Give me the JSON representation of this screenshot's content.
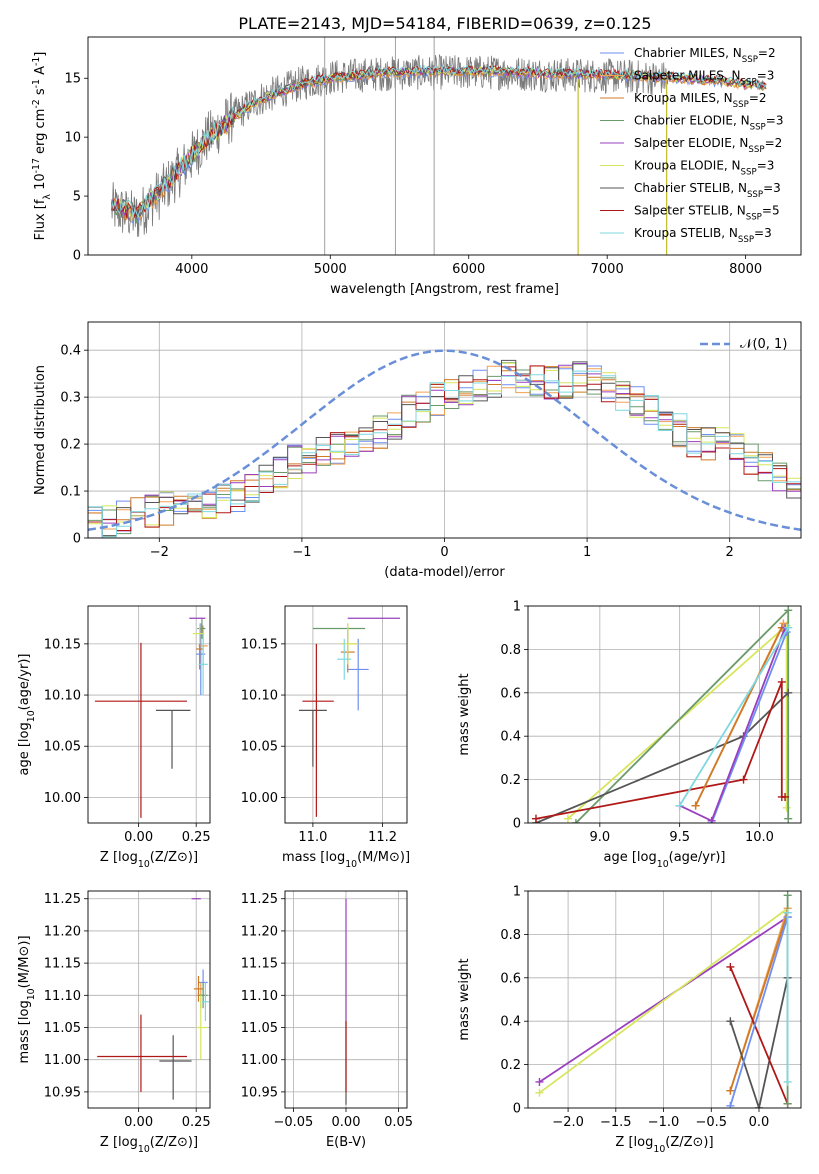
{
  "figure_title": "PLATE=2143, MJD=54184, FIBERID=0639, z=0.125",
  "model_colors": {
    "Chabrier MILES": "#6f8ff2",
    "Salpeter MILES": "#f0a050",
    "Kroupa MILES": "#d07a28",
    "Chabrier ELODIE": "#6a9a6a",
    "Salpeter ELODIE": "#9a3fbf",
    "Kroupa ELODIE": "#d7e65c",
    "Chabrier STELIB": "#555555",
    "Salpeter STELIB": "#b01818",
    "Kroupa STELIB": "#7fd8df"
  },
  "gauss_color": "#6a8fd9",
  "chart_data": [
    {
      "id": "spectrum",
      "type": "line",
      "xlabel": "wavelength [Angstrom, rest frame]",
      "ylabel": "Flux [f_λ 10^-17 erg cm^-2 s^-1 A^-1]",
      "xlim": [
        3250,
        8400
      ],
      "ylim": [
        0,
        18.5
      ],
      "xticks": [
        4000,
        5000,
        6000,
        7000,
        8000
      ],
      "yticks": [
        0,
        5,
        10,
        15
      ],
      "grid": false,
      "legend_position": "top-right",
      "legend": [
        "Chabrier MILES, N_SSP=2",
        "Salpeter MILES, N_SSP=3",
        "Kroupa MILES, N_SSP=2",
        "Chabrier ELODIE, N_SSP=3",
        "Salpeter ELODIE, N_SSP=2",
        "Kroupa ELODIE, N_SSP=3",
        "Chabrier STELIB, N_SSP=3",
        "Salpeter STELIB, N_SSP=5",
        "Kroupa STELIB, N_SSP=3"
      ],
      "observed_flux_trend": [
        [
          3420,
          4.0
        ],
        [
          3600,
          3.2
        ],
        [
          3800,
          5.6
        ],
        [
          3950,
          7.6
        ],
        [
          4100,
          9.8
        ],
        [
          4300,
          11.8
        ],
        [
          4500,
          13.3
        ],
        [
          4800,
          14.6
        ],
        [
          5000,
          15.1
        ],
        [
          5400,
          15.4
        ],
        [
          5800,
          15.5
        ],
        [
          6200,
          15.5
        ],
        [
          6600,
          15.3
        ],
        [
          7000,
          15.2
        ],
        [
          7400,
          15.0
        ]
      ],
      "model_flux_trend": [
        [
          3420,
          4.2
        ],
        [
          3600,
          3.5
        ],
        [
          3800,
          5.8
        ],
        [
          3950,
          7.8
        ],
        [
          4100,
          9.7
        ],
        [
          4300,
          11.7
        ],
        [
          4500,
          13.2
        ],
        [
          4800,
          14.5
        ],
        [
          5000,
          15.0
        ],
        [
          5400,
          15.5
        ],
        [
          5800,
          15.6
        ],
        [
          6200,
          15.6
        ],
        [
          6600,
          15.4
        ],
        [
          7000,
          15.3
        ],
        [
          7400,
          15.1
        ],
        [
          7800,
          14.8
        ],
        [
          8150,
          14.3
        ]
      ]
    },
    {
      "id": "residuals",
      "type": "step",
      "xlabel": "(data-model)/error",
      "ylabel": "Normed distribution",
      "xlim": [
        -2.5,
        2.5
      ],
      "ylim": [
        0,
        0.46
      ],
      "xticks": [
        -2,
        -1,
        0,
        1,
        2
      ],
      "yticks": [
        0.0,
        0.1,
        0.2,
        0.3,
        0.4
      ],
      "grid": true,
      "legend_position": "top-right",
      "gauss_label": "𝒩(0, 1)",
      "bins": 50,
      "histogram_trend": [
        [
          -2.5,
          0.03
        ],
        [
          -2.0,
          0.06
        ],
        [
          -1.5,
          0.08
        ],
        [
          -1.0,
          0.17
        ],
        [
          -0.5,
          0.21
        ],
        [
          -0.3,
          0.26
        ],
        [
          0.0,
          0.3
        ],
        [
          0.3,
          0.33
        ],
        [
          0.5,
          0.35
        ],
        [
          0.8,
          0.33
        ],
        [
          1.0,
          0.34
        ],
        [
          1.3,
          0.3
        ],
        [
          1.5,
          0.26
        ],
        [
          1.8,
          0.2
        ],
        [
          2.0,
          0.2
        ],
        [
          2.2,
          0.16
        ],
        [
          2.5,
          0.11
        ]
      ]
    },
    {
      "id": "z_age",
      "type": "errorbar",
      "xlabel": "Z [log10(Z/Z⊙)]",
      "ylabel": "age  [log10(age/yr)]",
      "xlim": [
        -0.22,
        0.31
      ],
      "ylim": [
        9.975,
        10.187
      ],
      "xticks": [
        0.0,
        0.25
      ],
      "xtick_labels": [
        "0.00",
        "0.25"
      ],
      "yticks": [
        10.0,
        10.05,
        10.1,
        10.15
      ],
      "yticklabels": [
        "10.00",
        "10.05",
        "10.10",
        "10.15"
      ],
      "grid": true,
      "points": [
        {
          "model": "Chabrier MILES",
          "x": 0.27,
          "xerr": [
            0.02,
            0.02
          ],
          "y": 10.14,
          "yerr": [
            0.04,
            0.03
          ]
        },
        {
          "model": "Salpeter MILES",
          "x": 0.28,
          "xerr": [
            0.02,
            0.02
          ],
          "y": 10.148,
          "yerr": [
            0.02,
            0.02
          ]
        },
        {
          "model": "Kroupa MILES",
          "x": 0.265,
          "xerr": [
            0.015,
            0.015
          ],
          "y": 10.145,
          "yerr": [
            0.02,
            0.02
          ]
        },
        {
          "model": "Chabrier ELODIE",
          "x": 0.275,
          "xerr": [
            0.02,
            0.015
          ],
          "y": 10.165,
          "yerr": [
            0.01,
            0.01
          ]
        },
        {
          "model": "Salpeter ELODIE",
          "x": 0.27,
          "xerr": [
            0.05,
            0.02
          ],
          "y": 10.175,
          "yerr": [
            0.0,
            0.0
          ]
        },
        {
          "model": "Kroupa ELODIE",
          "x": 0.265,
          "xerr": [
            0.03,
            0.02
          ],
          "y": 10.16,
          "yerr": [
            0.01,
            0.01
          ]
        },
        {
          "model": "Chabrier STELIB",
          "x": 0.145,
          "xerr": [
            0.07,
            0.08
          ],
          "y": 10.085,
          "yerr": [
            0.057,
            0.0
          ]
        },
        {
          "model": "Salpeter STELIB",
          "x": 0.01,
          "xerr": [
            0.2,
            0.2
          ],
          "y": 10.094,
          "yerr": [
            0.114,
            0.057
          ]
        },
        {
          "model": "Kroupa STELIB",
          "x": 0.28,
          "xerr": [
            0.02,
            0.02
          ],
          "y": 10.13,
          "yerr": [
            0.03,
            0.03
          ]
        }
      ]
    },
    {
      "id": "mass_age",
      "type": "errorbar",
      "xlabel": "mass [log10(M/M⊙)]",
      "ylabel": "",
      "xlim": [
        10.92,
        11.27
      ],
      "ylim": [
        9.975,
        10.187
      ],
      "xticks": [
        11.0,
        11.2
      ],
      "xtick_labels": [
        "11.0",
        "11.2"
      ],
      "yticks": [
        10.0,
        10.05,
        10.1,
        10.15
      ],
      "yticklabels": [
        "10.00",
        "10.05",
        "10.10",
        "10.15"
      ],
      "grid": true,
      "points": [
        {
          "model": "Chabrier MILES",
          "x": 11.13,
          "xerr": [
            0.03,
            0.03
          ],
          "y": 10.125,
          "yerr": [
            0.04,
            0.03
          ]
        },
        {
          "model": "Salpeter MILES",
          "x": 11.1,
          "xerr": [
            0.02,
            0.03
          ],
          "y": 10.15,
          "yerr": [
            0.02,
            0.02
          ]
        },
        {
          "model": "Kroupa MILES",
          "x": 11.1,
          "xerr": [
            0.02,
            0.02
          ],
          "y": 10.142,
          "yerr": [
            0.02,
            0.02
          ]
        },
        {
          "model": "Chabrier ELODIE",
          "x": 11.1,
          "xerr": [
            0.1,
            0.05
          ],
          "y": 10.165,
          "yerr": [
            0.03,
            0.0
          ]
        },
        {
          "model": "Salpeter ELODIE",
          "x": 11.25,
          "xerr": [
            0.15,
            0.0
          ],
          "y": 10.175,
          "yerr": [
            0.0,
            0.0
          ]
        },
        {
          "model": "Kroupa ELODIE",
          "x": 11.1,
          "xerr": [
            0.02,
            0.03
          ],
          "y": 10.15,
          "yerr": [
            0.02,
            0.02
          ]
        },
        {
          "model": "Chabrier STELIB",
          "x": 11.0,
          "xerr": [
            0.04,
            0.04
          ],
          "y": 10.085,
          "yerr": [
            0.055,
            0.0
          ]
        },
        {
          "model": "Salpeter STELIB",
          "x": 11.01,
          "xerr": [
            0.04,
            0.05
          ],
          "y": 10.094,
          "yerr": [
            0.113,
            0.056
          ]
        },
        {
          "model": "Kroupa STELIB",
          "x": 11.09,
          "xerr": [
            0.02,
            0.02
          ],
          "y": 10.135,
          "yerr": [
            0.02,
            0.02
          ]
        }
      ]
    },
    {
      "id": "age_weight",
      "type": "line",
      "xlabel": "age  [log10(age/yr)]",
      "ylabel": "mass weight",
      "xlim": [
        8.55,
        10.26
      ],
      "ylim": [
        0.0,
        1.0
      ],
      "xticks": [
        9.0,
        9.5,
        10.0
      ],
      "xtick_labels": [
        "9.0",
        "9.5",
        "10.0"
      ],
      "yticks": [
        0.0,
        0.2,
        0.4,
        0.6,
        0.8,
        1.0
      ],
      "grid": true,
      "series": [
        {
          "model": "Kroupa ELODIE",
          "x": [
            8.8,
            10.17,
            10.17
          ],
          "y": [
            0.02,
            0.91,
            0.07
          ]
        },
        {
          "model": "Chabrier ELODIE",
          "x": [
            8.85,
            10.18,
            10.18
          ],
          "y": [
            0.0,
            0.98,
            0.02
          ]
        },
        {
          "model": "Chabrier STELIB",
          "x": [
            8.6,
            9.9,
            10.18
          ],
          "y": [
            0.0,
            0.4,
            0.6
          ]
        },
        {
          "model": "Salpeter STELIB",
          "x": [
            8.6,
            9.9,
            10.14,
            10.14,
            10.16
          ],
          "y": [
            0.02,
            0.2,
            0.65,
            0.12,
            0.12
          ]
        },
        {
          "model": "Salpeter MILES",
          "x": [
            9.6,
            10.15
          ],
          "y": [
            0.08,
            0.92
          ]
        },
        {
          "model": "Kroupa MILES",
          "x": [
            9.6,
            10.14
          ],
          "y": [
            0.08,
            0.9
          ]
        },
        {
          "model": "Chabrier MILES",
          "x": [
            9.7,
            10.17
          ],
          "y": [
            0.0,
            0.88
          ]
        },
        {
          "model": "Salpeter ELODIE",
          "x": [
            9.5,
            9.7,
            10.16
          ],
          "y": [
            0.08,
            0.01,
            0.9
          ]
        },
        {
          "model": "Kroupa STELIB",
          "x": [
            9.5,
            10.18
          ],
          "y": [
            0.08,
            0.9
          ]
        }
      ]
    },
    {
      "id": "z_mass",
      "type": "errorbar",
      "xlabel": "Z [log10(Z/Z⊙)]",
      "ylabel": "mass [log10(M/M⊙)]",
      "xlim": [
        -0.22,
        0.31
      ],
      "ylim": [
        10.925,
        11.262
      ],
      "xticks": [
        0.0,
        0.25
      ],
      "xtick_labels": [
        "0.00",
        "0.25"
      ],
      "yticks": [
        10.95,
        11.0,
        11.05,
        11.1,
        11.15,
        11.2,
        11.25
      ],
      "yticklabels": [
        "10.95",
        "11.00",
        "11.05",
        "11.10",
        "11.15",
        "11.20",
        "11.25"
      ],
      "grid": true,
      "points": [
        {
          "model": "Chabrier MILES",
          "x": 0.28,
          "xerr": [
            0.02,
            0.02
          ],
          "y": 11.12,
          "yerr": [
            0.03,
            0.02
          ]
        },
        {
          "model": "Salpeter MILES",
          "x": 0.27,
          "xerr": [
            0.02,
            0.02
          ],
          "y": 11.1,
          "yerr": [
            0.02,
            0.02
          ]
        },
        {
          "model": "Kroupa MILES",
          "x": 0.26,
          "xerr": [
            0.02,
            0.02
          ],
          "y": 11.11,
          "yerr": [
            0.02,
            0.02
          ]
        },
        {
          "model": "Chabrier ELODIE",
          "x": 0.28,
          "xerr": [
            0.02,
            0.02
          ],
          "y": 11.1,
          "yerr": [
            0.02,
            0.02
          ]
        },
        {
          "model": "Salpeter ELODIE",
          "x": 0.25,
          "xerr": [
            0.02,
            0.02
          ],
          "y": 11.25,
          "yerr": [
            0.0,
            0.0
          ]
        },
        {
          "model": "Kroupa ELODIE",
          "x": 0.27,
          "xerr": [
            0.02,
            0.03
          ],
          "y": 11.05,
          "yerr": [
            0.05,
            0.05
          ]
        },
        {
          "model": "Chabrier STELIB",
          "x": 0.15,
          "xerr": [
            0.06,
            0.08
          ],
          "y": 10.998,
          "yerr": [
            0.06,
            0.04
          ]
        },
        {
          "model": "Salpeter STELIB",
          "x": 0.01,
          "xerr": [
            0.19,
            0.2
          ],
          "y": 11.005,
          "yerr": [
            0.055,
            0.065
          ]
        },
        {
          "model": "Kroupa STELIB",
          "x": 0.29,
          "xerr": [
            0.015,
            0.015
          ],
          "y": 11.09,
          "yerr": [
            0.03,
            0.03
          ]
        }
      ]
    },
    {
      "id": "ebv_mass",
      "type": "errorbar",
      "xlabel": "E(B-V)",
      "ylabel": "",
      "xlim": [
        -0.058,
        0.058
      ],
      "ylim": [
        10.925,
        11.262
      ],
      "xticks": [
        -0.05,
        0.0,
        0.05
      ],
      "xtick_labels": [
        "−0.05",
        "0.00",
        "0.05"
      ],
      "yticks": [
        10.95,
        11.0,
        11.05,
        11.1,
        11.15,
        11.2,
        11.25
      ],
      "yticklabels": [
        "10.95",
        "11.00",
        "11.05",
        "11.10",
        "11.15",
        "11.20",
        "11.25"
      ],
      "grid": true,
      "points": [
        {
          "model": "Kroupa ELODIE",
          "x": 0.0,
          "xerr": [
            0,
            0
          ],
          "y": 11.1,
          "yerr": [
            0.05,
            0.05
          ]
        },
        {
          "model": "Salpeter ELODIE",
          "x": 0.0,
          "xerr": [
            0,
            0
          ],
          "y": 11.15,
          "yerr": [
            0.1,
            0.1
          ]
        },
        {
          "model": "Chabrier STELIB",
          "x": 0.0,
          "xerr": [
            0,
            0
          ],
          "y": 11.0,
          "yerr": [
            0.07,
            0.05
          ]
        },
        {
          "model": "Salpeter STELIB",
          "x": 0.0,
          "xerr": [
            0,
            0
          ],
          "y": 11.0,
          "yerr": [
            0.05,
            0.06
          ]
        }
      ]
    },
    {
      "id": "z_weight",
      "type": "line",
      "xlabel": "Z [log10(Z/Z⊙)]",
      "ylabel": "mass weight",
      "xlim": [
        -2.42,
        0.44
      ],
      "ylim": [
        0.0,
        1.0
      ],
      "xticks": [
        -2.0,
        -1.5,
        -1.0,
        -0.5,
        0.0
      ],
      "xtick_labels": [
        "−2.0",
        "−1.5",
        "−1.0",
        "−0.5",
        "0.0"
      ],
      "yticks": [
        0.0,
        0.2,
        0.4,
        0.6,
        0.8,
        1.0
      ],
      "grid": true,
      "series": [
        {
          "model": "Salpeter ELODIE",
          "x": [
            -2.3,
            0.3
          ],
          "y": [
            0.12,
            0.88
          ]
        },
        {
          "model": "Kroupa ELODIE",
          "x": [
            -2.3,
            0.3
          ],
          "y": [
            0.07,
            0.92
          ]
        },
        {
          "model": "Salpeter MILES",
          "x": [
            -0.3,
            0.3
          ],
          "y": [
            0.08,
            0.92
          ]
        },
        {
          "model": "Kroupa MILES",
          "x": [
            -0.3,
            0.3
          ],
          "y": [
            0.08,
            0.9
          ]
        },
        {
          "model": "Chabrier STELIB",
          "x": [
            -0.3,
            0.0,
            0.3
          ],
          "y": [
            0.4,
            0.0,
            0.6
          ]
        },
        {
          "model": "Salpeter STELIB",
          "x": [
            -0.3,
            0.3
          ],
          "y": [
            0.65,
            0.02
          ]
        },
        {
          "model": "Chabrier MILES",
          "x": [
            -0.3,
            0.3
          ],
          "y": [
            0.01,
            0.88
          ]
        },
        {
          "model": "Chabrier ELODIE",
          "x": [
            0.3,
            0.3
          ],
          "y": [
            0.02,
            0.98
          ]
        },
        {
          "model": "Kroupa STELIB",
          "x": [
            0.3,
            0.3
          ],
          "y": [
            0.12,
            0.9
          ]
        }
      ]
    }
  ]
}
